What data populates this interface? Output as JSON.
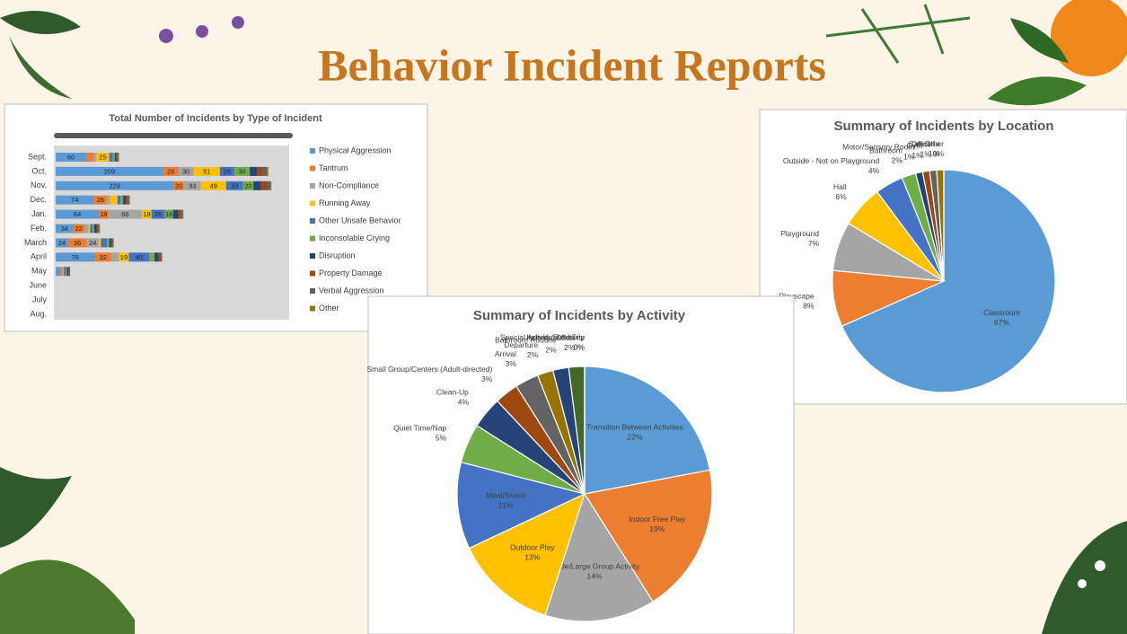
{
  "title": "Behavior Incident Reports",
  "chart_data": [
    {
      "type": "stacked-bar-horizontal",
      "title": "Total Number of Incidents by Type of Incident",
      "categories": [
        "Sept.",
        "Oct.",
        "Nov.",
        "Dec.",
        "Jan.",
        "Feb.",
        "March",
        "April",
        "May",
        "June",
        "July",
        "Aug."
      ],
      "xlim": [
        0,
        450
      ],
      "series": [
        {
          "name": "Physical Aggression",
          "color": "#5b9bd5",
          "values": [
            60,
            209,
            229,
            74,
            84,
            34,
            24,
            76,
            9,
            null,
            null,
            null
          ]
        },
        {
          "name": "Tantrum",
          "color": "#ed7d31",
          "values": [
            14,
            29,
            20,
            26,
            18,
            22,
            36,
            32,
            4,
            null,
            null,
            null
          ]
        },
        {
          "name": "Non-Compliance",
          "color": "#a5a5a5",
          "values": [
            5,
            30,
            33,
            6,
            66,
            8,
            24,
            15,
            2,
            null,
            null,
            null
          ]
        },
        {
          "name": "Running Away",
          "color": "#ffc000",
          "values": [
            25,
            51,
            49,
            14,
            18,
            3,
            4,
            19,
            1,
            null,
            null,
            null
          ]
        },
        {
          "name": "Other Unsafe Behavior",
          "color": "#4472c4",
          "values": [
            7,
            28,
            33,
            6,
            26,
            5,
            12,
            40,
            4,
            null,
            null,
            null
          ]
        },
        {
          "name": "Inconsolable Crying",
          "color": "#70ad47",
          "values": [
            4,
            30,
            20,
            5,
            16,
            3,
            4,
            10,
            2,
            null,
            null,
            null
          ]
        },
        {
          "name": "Disruption",
          "color": "#264478",
          "values": [
            3,
            15,
            15,
            5,
            10,
            5,
            4,
            8,
            3,
            null,
            null,
            null
          ]
        },
        {
          "name": "Property Damage",
          "color": "#9e480e",
          "values": [
            2,
            10,
            10,
            4,
            5,
            3,
            2,
            4,
            2,
            null,
            null,
            null
          ]
        },
        {
          "name": "Verbal Aggression",
          "color": "#636363",
          "values": [
            2,
            8,
            8,
            3,
            4,
            2,
            2,
            2,
            1,
            null,
            null,
            null
          ]
        },
        {
          "name": "Other",
          "color": "#997300",
          "values": [
            1,
            3,
            2,
            1,
            1,
            1,
            1,
            1,
            0,
            null,
            null,
            null
          ]
        }
      ]
    },
    {
      "type": "pie",
      "title": "Summary of Incidents by Location",
      "categories": [
        "Classroom",
        "Playscape",
        "Playground",
        "Hall",
        "Outside - Not on Playground",
        "Bathroom",
        "Motor/Sensory Room",
        "Gym",
        "Office",
        "Cafeteria",
        "Other"
      ],
      "values": [
        67,
        8,
        7,
        6,
        4,
        2,
        1,
        1,
        1,
        1,
        0
      ],
      "value_labels": [
        "67%",
        "8%",
        "7%",
        "6%",
        "4%",
        "2%",
        "1%",
        "1%",
        "1%",
        "1%",
        "0%"
      ],
      "colors": [
        "#5b9bd5",
        "#ed7d31",
        "#a5a5a5",
        "#ffc000",
        "#4472c4",
        "#70ad47",
        "#264478",
        "#9e480e",
        "#636363",
        "#997300",
        "#255e91"
      ]
    },
    {
      "type": "pie",
      "title": "Summary of Incidents by Activity",
      "categories": [
        "Transition Between Activities",
        "Indoor Free Play",
        "Circle/Large Group Activity",
        "Outdoor Play",
        "Meal/Snack",
        "Quiet Time/Nap",
        "Clean-Up",
        "Small Group/Centers (Adult-directed)",
        "Arrival",
        "Departure",
        "Bathroom Routine",
        "Other",
        "Individual Activity",
        "Special Activity/Field Trip"
      ],
      "values": [
        22,
        19,
        14,
        13,
        11,
        5,
        4,
        3,
        3,
        2,
        2,
        2,
        0,
        0
      ],
      "value_labels": [
        "22%",
        "19%",
        "14%",
        "13%",
        "11%",
        "5%",
        "4%",
        "3%",
        "3%",
        "2%",
        "2%",
        "2%",
        "0%",
        "0%"
      ],
      "colors": [
        "#5b9bd5",
        "#ed7d31",
        "#a5a5a5",
        "#ffc000",
        "#4472c4",
        "#70ad47",
        "#264478",
        "#9e480e",
        "#636363",
        "#997300",
        "#264478",
        "#43682b",
        "#7cafdd",
        "#f1975a"
      ]
    }
  ]
}
